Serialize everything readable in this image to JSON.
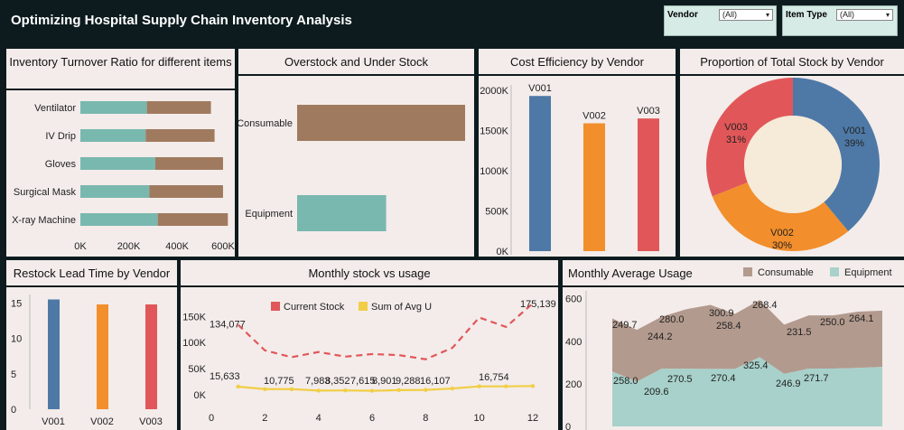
{
  "header": {
    "title": "Optimizing Hospital Supply Chain Inventory Analysis",
    "filters": [
      {
        "label": "Vendor",
        "value": "(All)"
      },
      {
        "label": "Item Type",
        "value": "(All)"
      }
    ]
  },
  "panels": {
    "turnover": "Inventory Turnover Ratio for different items",
    "overstock": "Overstock and Under Stock",
    "cost": "Cost Efficiency by Vendor",
    "proportion": "Proportion of Total Stock by Vendor",
    "restock": "Restock Lead Time by Vendor",
    "monthly": "Monthly stock vs usage",
    "avg_usage": "Monthly Average Usage"
  },
  "colors": {
    "teal": "#79b8ae",
    "brown": "#a07a5f",
    "blue": "#4e79a7",
    "orange": "#f28e2b",
    "red": "#e15759",
    "yellow": "#f1ce45",
    "panel_bg": "#f3ecea",
    "dark_bg": "#0d1b1e"
  },
  "chart_data": [
    {
      "id": "turnover",
      "type": "bar",
      "orientation": "horizontal",
      "stacked": true,
      "categories": [
        "Ventilator",
        "IV Drip",
        "Gloves",
        "Surgical Mask",
        "X-ray Machine"
      ],
      "series": [
        {
          "values": [
            275000,
            270000,
            310000,
            285000,
            320000
          ],
          "color": "#79b8ae"
        },
        {
          "values": [
            265000,
            285000,
            280000,
            305000,
            290000
          ],
          "color": "#a07a5f"
        }
      ],
      "xticks": [
        "0K",
        "200K",
        "400K",
        "600K"
      ],
      "xlim": [
        0,
        620000
      ]
    },
    {
      "id": "overstock",
      "type": "bar",
      "orientation": "horizontal",
      "categories": [
        "Consumable",
        "Equipment"
      ],
      "values": [
        100,
        53
      ],
      "colors": [
        "#a07a5f",
        "#79b8ae"
      ]
    },
    {
      "id": "cost",
      "type": "bar",
      "categories": [
        "V001",
        "V002",
        "V003"
      ],
      "values": [
        1930000,
        1590000,
        1650000
      ],
      "colors": [
        "#4e79a7",
        "#f28e2b",
        "#e15759"
      ],
      "yticks": [
        "2000K",
        "1500K",
        "1000K",
        "500K",
        "0K"
      ],
      "ylim": [
        0,
        2000000
      ]
    },
    {
      "id": "proportion",
      "type": "pie",
      "labels": [
        "V001",
        "V002",
        "V003"
      ],
      "values": [
        39,
        30,
        31
      ],
      "percent_labels": [
        "39%",
        "30%",
        "31%"
      ],
      "colors": [
        "#4e79a7",
        "#f28e2b",
        "#e15759"
      ]
    },
    {
      "id": "restock",
      "type": "bar",
      "categories": [
        "V001",
        "V002",
        "V003"
      ],
      "values": [
        15.5,
        14.8,
        14.8
      ],
      "colors": [
        "#4e79a7",
        "#f28e2b",
        "#e15759"
      ],
      "yticks": [
        "15",
        "10",
        "5",
        "0"
      ],
      "ylim": [
        0,
        16.2
      ]
    },
    {
      "id": "monthly",
      "type": "line",
      "legend": [
        "Current Stock",
        "Sum of Avg U"
      ],
      "x": [
        1,
        2,
        3,
        4,
        5,
        6,
        7,
        8,
        9,
        10,
        11,
        12
      ],
      "series": [
        {
          "name": "Current Stock",
          "values": [
            134077,
            85000,
            72000,
            82000,
            73000,
            78000,
            76000,
            68000,
            90000,
            148000,
            130000,
            175139
          ],
          "color": "#e15759"
        },
        {
          "name": "Sum of Avg U",
          "values": [
            15633,
            10775,
            10775,
            7983,
            8352,
            7615,
            8901,
            9288,
            12000,
            16107,
            16107,
            16754
          ],
          "color": "#f1ce45"
        }
      ],
      "data_labels": {
        "stock": [
          "134,077",
          "175,139"
        ],
        "usage": [
          "15,633",
          "10,775",
          "7,983",
          "8,352",
          "7,615",
          "8,901",
          "9,288",
          "16,107",
          "16,754"
        ]
      },
      "xticks": [
        "0",
        "2",
        "4",
        "6",
        "8",
        "10",
        "12"
      ],
      "yticks": [
        "150K",
        "100K",
        "50K",
        "0K"
      ],
      "ylim": [
        0,
        180000
      ]
    },
    {
      "id": "avg_usage",
      "type": "area",
      "stacked": true,
      "legend": [
        "Consumable",
        "Equipment"
      ],
      "x": [
        1,
        2,
        3,
        4,
        5,
        6,
        7,
        8,
        9,
        10,
        11,
        12
      ],
      "series": [
        {
          "name": "Equipment",
          "values": [
            258.0,
            209.6,
            270.5,
            270.5,
            270.4,
            270.4,
            325.4,
            246.9,
            271.7,
            271.7,
            275,
            280
          ],
          "color": "#79b8ae"
        },
        {
          "name": "Consumable",
          "values": [
            249.7,
            244.2,
            244.2,
            280.0,
            300.9,
            258.4,
            268.4,
            231.5,
            250.0,
            250.0,
            264.1,
            264.1
          ],
          "color": "#a07a5f"
        }
      ],
      "labels_equipment": [
        "258.0",
        "209.6",
        "270.5",
        "270.4",
        "325.4",
        "246.9",
        "271.7"
      ],
      "labels_consumable": [
        "249.7",
        "244.2",
        "280.0",
        "258.4",
        "300.9",
        "268.4",
        "231.5",
        "250.0",
        "264.1"
      ],
      "yticks": [
        "600",
        "400",
        "200",
        "0"
      ],
      "ylim": [
        0,
        620
      ]
    }
  ]
}
